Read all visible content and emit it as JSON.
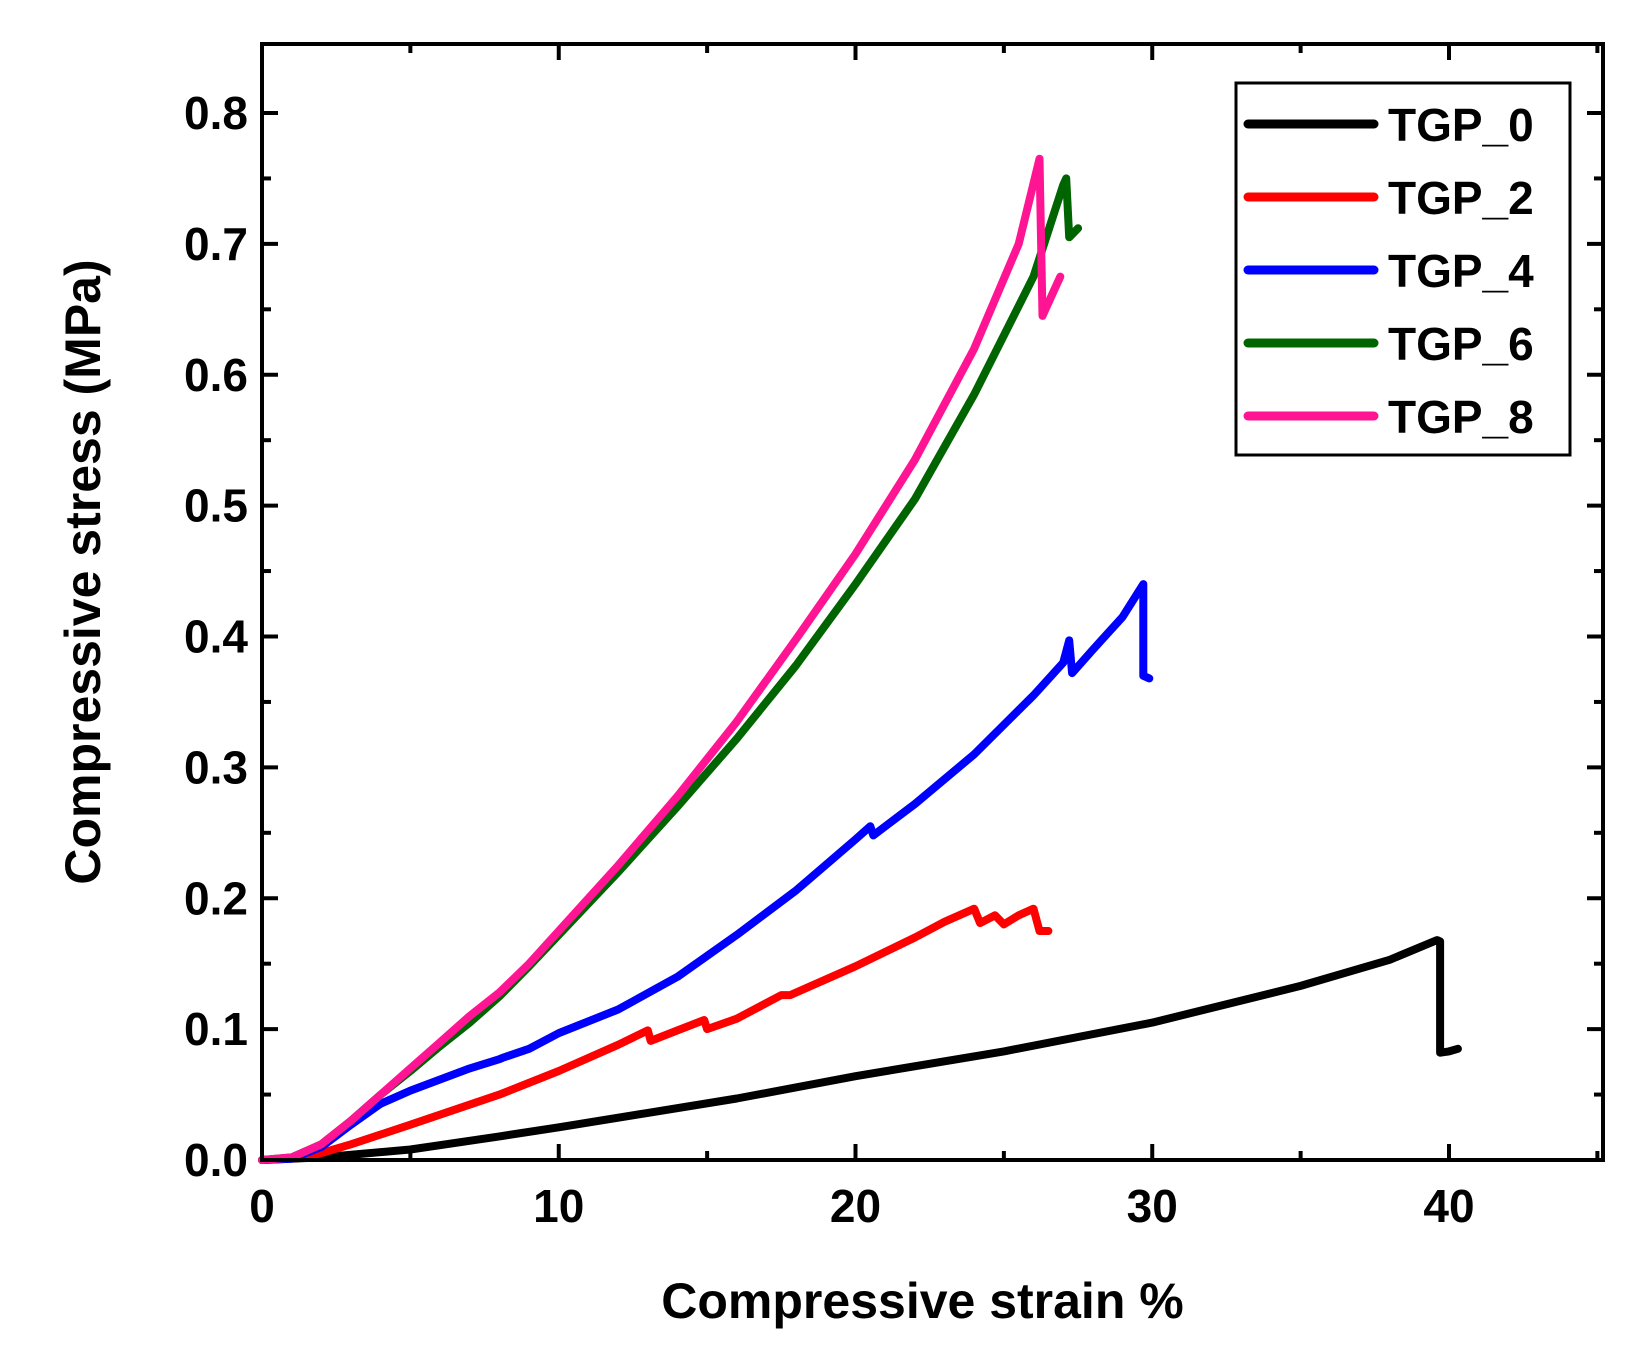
{
  "chart_data": {
    "type": "line",
    "title": "",
    "xlabel": "Compressive strain %",
    "ylabel": "Compressive stress (MPa)",
    "xlim": [
      0,
      45
    ],
    "ylim": [
      0,
      0.85
    ],
    "x_ticks": [
      0,
      10,
      20,
      30,
      40
    ],
    "x_tick_labels": [
      "0",
      "10",
      "20",
      "30",
      "40"
    ],
    "y_ticks": [
      0.0,
      0.1,
      0.2,
      0.3,
      0.4,
      0.5,
      0.6,
      0.7,
      0.8
    ],
    "y_tick_labels": [
      "0.0",
      "0.1",
      "0.2",
      "0.3",
      "0.4",
      "0.5",
      "0.6",
      "0.7",
      "0.8"
    ],
    "grid": false,
    "legend_position": "top-right",
    "series": [
      {
        "name": "TGP_0",
        "color": "#000000",
        "points": [
          [
            0,
            0
          ],
          [
            2,
            0.002
          ],
          [
            5,
            0.008
          ],
          [
            8,
            0.018
          ],
          [
            10,
            0.025
          ],
          [
            13,
            0.036
          ],
          [
            16,
            0.047
          ],
          [
            20,
            0.064
          ],
          [
            25,
            0.083
          ],
          [
            30,
            0.105
          ],
          [
            35,
            0.133
          ],
          [
            38,
            0.153
          ],
          [
            39.6,
            0.168
          ],
          [
            39.7,
            0.167
          ],
          [
            39.7,
            0.082
          ],
          [
            40,
            0.083
          ],
          [
            40.3,
            0.085
          ]
        ]
      },
      {
        "name": "TGP_2",
        "color": "#ff0000",
        "points": [
          [
            0,
            0
          ],
          [
            1.5,
            0.002
          ],
          [
            3,
            0.012
          ],
          [
            5,
            0.027
          ],
          [
            8,
            0.05
          ],
          [
            10,
            0.068
          ],
          [
            12,
            0.088
          ],
          [
            13,
            0.099
          ],
          [
            13.1,
            0.091
          ],
          [
            14,
            0.099
          ],
          [
            14.9,
            0.107
          ],
          [
            15,
            0.1
          ],
          [
            16,
            0.108
          ],
          [
            17.5,
            0.126
          ],
          [
            17.8,
            0.126
          ],
          [
            20,
            0.148
          ],
          [
            22,
            0.17
          ],
          [
            23,
            0.182
          ],
          [
            24,
            0.192
          ],
          [
            24.2,
            0.181
          ],
          [
            24.7,
            0.187
          ],
          [
            25,
            0.18
          ],
          [
            25.5,
            0.187
          ],
          [
            26,
            0.192
          ],
          [
            26.2,
            0.175
          ],
          [
            26.5,
            0.175
          ]
        ]
      },
      {
        "name": "TGP_4",
        "color": "#0000ff",
        "points": [
          [
            0,
            0
          ],
          [
            1,
            0.001
          ],
          [
            2,
            0.01
          ],
          [
            3,
            0.027
          ],
          [
            4,
            0.043
          ],
          [
            5,
            0.053
          ],
          [
            7,
            0.07
          ],
          [
            8,
            0.077
          ],
          [
            8.1,
            0.078
          ],
          [
            9,
            0.085
          ],
          [
            10,
            0.097
          ],
          [
            12,
            0.115
          ],
          [
            14,
            0.14
          ],
          [
            16,
            0.172
          ],
          [
            18,
            0.206
          ],
          [
            20,
            0.245
          ],
          [
            20.5,
            0.255
          ],
          [
            20.6,
            0.248
          ],
          [
            22,
            0.272
          ],
          [
            24,
            0.31
          ],
          [
            26,
            0.355
          ],
          [
            27,
            0.38
          ],
          [
            27.2,
            0.397
          ],
          [
            27.3,
            0.372
          ],
          [
            28,
            0.39
          ],
          [
            29,
            0.415
          ],
          [
            29.7,
            0.44
          ],
          [
            29.7,
            0.37
          ],
          [
            29.9,
            0.368
          ]
        ]
      },
      {
        "name": "TGP_6",
        "color": "#006400",
        "points": [
          [
            0,
            0
          ],
          [
            1,
            0.002
          ],
          [
            2,
            0.012
          ],
          [
            3,
            0.03
          ],
          [
            4,
            0.05
          ],
          [
            5,
            0.068
          ],
          [
            6,
            0.087
          ],
          [
            7,
            0.105
          ],
          [
            8,
            0.125
          ],
          [
            9,
            0.148
          ],
          [
            10,
            0.172
          ],
          [
            12,
            0.22
          ],
          [
            14,
            0.27
          ],
          [
            16,
            0.322
          ],
          [
            18,
            0.378
          ],
          [
            20,
            0.44
          ],
          [
            22,
            0.505
          ],
          [
            24,
            0.585
          ],
          [
            26,
            0.675
          ],
          [
            27,
            0.745
          ],
          [
            27.1,
            0.75
          ],
          [
            27.2,
            0.705
          ],
          [
            27.5,
            0.712
          ]
        ]
      },
      {
        "name": "TGP_8",
        "color": "#ff1493",
        "points": [
          [
            0,
            0
          ],
          [
            1,
            0.002
          ],
          [
            2,
            0.012
          ],
          [
            3,
            0.03
          ],
          [
            4,
            0.05
          ],
          [
            5,
            0.07
          ],
          [
            6,
            0.09
          ],
          [
            7,
            0.11
          ],
          [
            8,
            0.128
          ],
          [
            9,
            0.15
          ],
          [
            10,
            0.175
          ],
          [
            12,
            0.225
          ],
          [
            14,
            0.278
          ],
          [
            16,
            0.335
          ],
          [
            18,
            0.398
          ],
          [
            20,
            0.463
          ],
          [
            22,
            0.535
          ],
          [
            24,
            0.62
          ],
          [
            25.5,
            0.7
          ],
          [
            26.2,
            0.765
          ],
          [
            26.3,
            0.645
          ],
          [
            26.6,
            0.66
          ],
          [
            26.9,
            0.675
          ]
        ]
      }
    ]
  }
}
